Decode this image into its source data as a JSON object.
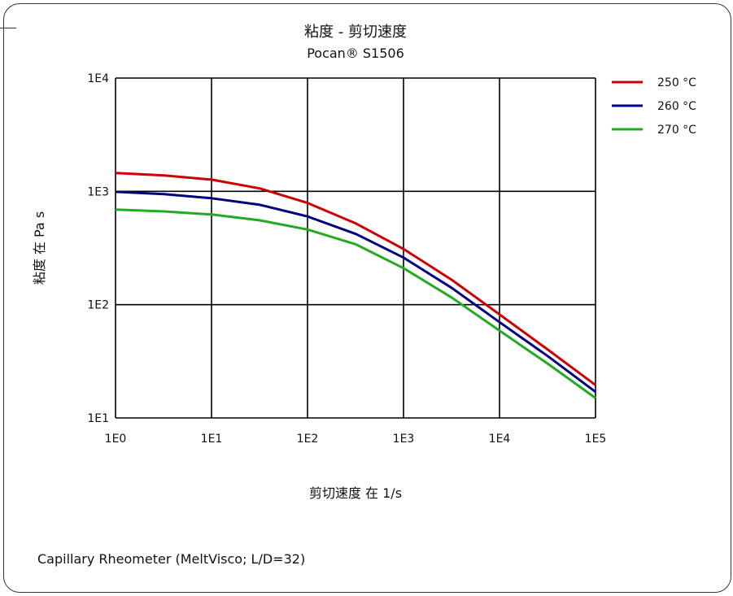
{
  "chart_data": {
    "type": "line",
    "title": "粘度 - 剪切速度",
    "subtitle": "Pocan® S1506",
    "xlabel": "剪切速度 在 1/s",
    "ylabel": "粘度 在 Pa s",
    "x_scale": "log",
    "y_scale": "log",
    "xlim": [
      1,
      100000
    ],
    "ylim": [
      10,
      10000
    ],
    "x_ticks": [
      "1E0",
      "1E1",
      "1E2",
      "1E3",
      "1E4",
      "1E5"
    ],
    "y_ticks": [
      "1E1",
      "1E2",
      "1E3",
      "1E4"
    ],
    "grid": true,
    "legend_position": "right",
    "series": [
      {
        "name": "250 °C",
        "color": "#cc0000",
        "x": [
          1,
          3.2,
          10,
          32,
          100,
          320,
          1000,
          3200,
          10000,
          32000,
          100000
        ],
        "y": [
          1450,
          1380,
          1270,
          1060,
          790,
          520,
          310,
          165,
          82,
          40,
          19.5
        ]
      },
      {
        "name": "260 °C",
        "color": "#000080",
        "x": [
          1,
          3.2,
          10,
          32,
          100,
          320,
          1000,
          3200,
          10000,
          32000,
          100000
        ],
        "y": [
          990,
          945,
          870,
          760,
          600,
          420,
          260,
          140,
          70,
          35,
          17
        ]
      },
      {
        "name": "270 °C",
        "color": "#22aa22",
        "x": [
          1,
          3.2,
          10,
          32,
          100,
          320,
          1000,
          3200,
          10000,
          32000,
          100000
        ],
        "y": [
          690,
          665,
          625,
          555,
          460,
          340,
          210,
          115,
          59,
          30,
          15
        ]
      }
    ]
  },
  "footnote": "Capillary Rheometer (MeltVisco; L/D=32)"
}
